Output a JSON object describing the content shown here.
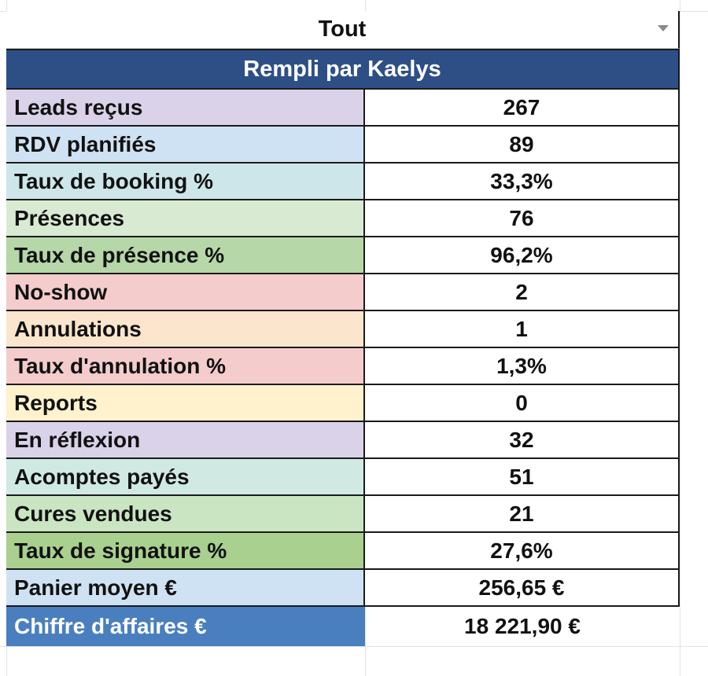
{
  "filter": {
    "value": "Tout"
  },
  "header": {
    "title": "Rempli par Kaelys"
  },
  "rows": [
    {
      "label": "Leads reçus",
      "value": "267",
      "color": "#d9d2e9"
    },
    {
      "label": "RDV planifiés",
      "value": "89",
      "color": "#cfe2f3"
    },
    {
      "label": "Taux de booking %",
      "value": "33,3%",
      "color": "#cde6ea"
    },
    {
      "label": "Présences",
      "value": "76",
      "color": "#d9ead3"
    },
    {
      "label": "Taux de présence %",
      "value": "96,2%",
      "color": "#b6d7a8"
    },
    {
      "label": "No-show",
      "value": "2",
      "color": "#f4cccc"
    },
    {
      "label": "Annulations",
      "value": "1",
      "color": "#fce5cd"
    },
    {
      "label": "Taux d'annulation %",
      "value": "1,3%",
      "color": "#f4cccc"
    },
    {
      "label": "Reports",
      "value": "0",
      "color": "#fff2cc"
    },
    {
      "label": "En réflexion",
      "value": "32",
      "color": "#d9d2e9"
    },
    {
      "label": "Acomptes payés",
      "value": "51",
      "color": "#d0e9e3"
    },
    {
      "label": "Cures vendues",
      "value": "21",
      "color": "#c9e5c1"
    },
    {
      "label": "Taux de signature %",
      "value": "27,6%",
      "color": "#a9d08e"
    },
    {
      "label": "Panier moyen €",
      "value": "256,65 €",
      "color": "#cfe2f3"
    }
  ],
  "total": {
    "label": "Chiffre d'affaires €",
    "value": "18 221,90 €",
    "color": "#4a7fbf"
  },
  "colors": {
    "header_bg": "#2e4f86"
  }
}
